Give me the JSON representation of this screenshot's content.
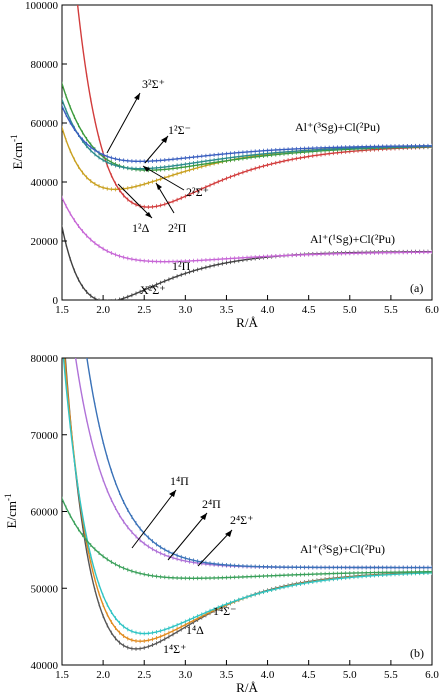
{
  "chart_data": [
    {
      "panel_label": "(a)",
      "type": "line",
      "xlabel": "R/Å",
      "ylabel": "E/cm-1",
      "xlim": [
        1.5,
        6.0
      ],
      "ylim": [
        0,
        100000
      ],
      "xticks": [
        "1.5",
        "2.0",
        "2.5",
        "3.0",
        "3.5",
        "4.0",
        "4.5",
        "5.0",
        "5.5",
        "6.0"
      ],
      "yticks": [
        "0",
        "20000",
        "40000",
        "60000",
        "80000",
        "100000"
      ],
      "series": [
        {
          "name": "X2Σ+",
          "color": "#404040",
          "De": 17000,
          "Re": 2.05,
          "a": 1.45,
          "Tinf": 16500
        },
        {
          "name": "12Π",
          "color": "#c766d6",
          "De": 3500,
          "Re": 2.75,
          "a": 1.0,
          "Tinf": 16500
        },
        {
          "name": "12Δ",
          "color": "#c9a020",
          "De": 15000,
          "Re": 2.15,
          "a": 1.2,
          "Tinf": 52500
        },
        {
          "name": "22Π",
          "color": "#d23c3c",
          "De": 21000,
          "Re": 2.55,
          "a": 1.2,
          "Tinf": 52500
        },
        {
          "name": "22Σ+",
          "color": "#3c9b3c",
          "De": 8500,
          "Re": 2.55,
          "a": 1.0,
          "Tinf": 52500
        },
        {
          "name": "12Σ-",
          "color": "#2c8c8c",
          "De": 8000,
          "Re": 2.45,
          "a": 1.05,
          "Tinf": 52500
        },
        {
          "name": "32Σ+",
          "color": "#3a5fbf",
          "De": 5500,
          "Re": 2.45,
          "a": 1.1,
          "Tinf": 52500
        }
      ],
      "labels": {
        "s32sigma": "3²Σ⁺",
        "s12sigmaminus": "1²Σ⁻",
        "s22sigma": "2²Σ⁺",
        "s12delta": "1²Δ",
        "s22pi": "2²Π",
        "s12pi": "1²Π",
        "sX": "X²Σ⁺",
        "asym_high": "Al⁺(³Sg)+Cl(²Pu)",
        "asym_low": "Al⁺(¹Sg)+Cl(²Pu)"
      }
    },
    {
      "panel_label": "(b)",
      "type": "line",
      "xlabel": "R/Å",
      "ylabel": "E/cm-1",
      "xlim": [
        1.5,
        6.0
      ],
      "ylim": [
        40000,
        80000
      ],
      "xticks": [
        "1.5",
        "2.0",
        "2.5",
        "3.0",
        "3.5",
        "4.0",
        "4.5",
        "5.0",
        "5.5",
        "6.0"
      ],
      "yticks": [
        "40000",
        "50000",
        "60000",
        "70000",
        "80000"
      ],
      "series": [
        {
          "name": "14Σ+",
          "color": "#555555",
          "De": 10200,
          "Re": 2.4,
          "a": 1.25,
          "Tinf": 52300
        },
        {
          "name": "14Δ",
          "color": "#e08a1e",
          "De": 9200,
          "Re": 2.45,
          "a": 1.2,
          "Tinf": 52300
        },
        {
          "name": "14Σ-",
          "color": "#2fc4c4",
          "De": 8200,
          "Re": 2.5,
          "a": 1.15,
          "Tinf": 52300
        },
        {
          "name": "14Π",
          "color": "#3aa05a",
          "De": 1000,
          "Re": 3.1,
          "a": 0.9,
          "Tinf": 52300
        },
        {
          "name": "24Π",
          "color": "#b072d8",
          "De": 0,
          "Re": 2.0,
          "a": 0.9,
          "Tinf": 52700
        },
        {
          "name": "24Σ+",
          "color": "#3a72b8",
          "De": 0,
          "Re": 2.0,
          "a": 0.9,
          "Tinf": 52700
        }
      ],
      "labels": {
        "q14pi": "1⁴Π",
        "q24pi": "2⁴Π",
        "q24sigma": "2⁴Σ⁺",
        "q14sigmaminus": "1⁴Σ⁻",
        "q14delta": "1⁴Δ",
        "q14sigmaplus": "1⁴Σ⁺",
        "asym": "Al⁺(³Sg)+Cl(²Pu)"
      }
    }
  ]
}
